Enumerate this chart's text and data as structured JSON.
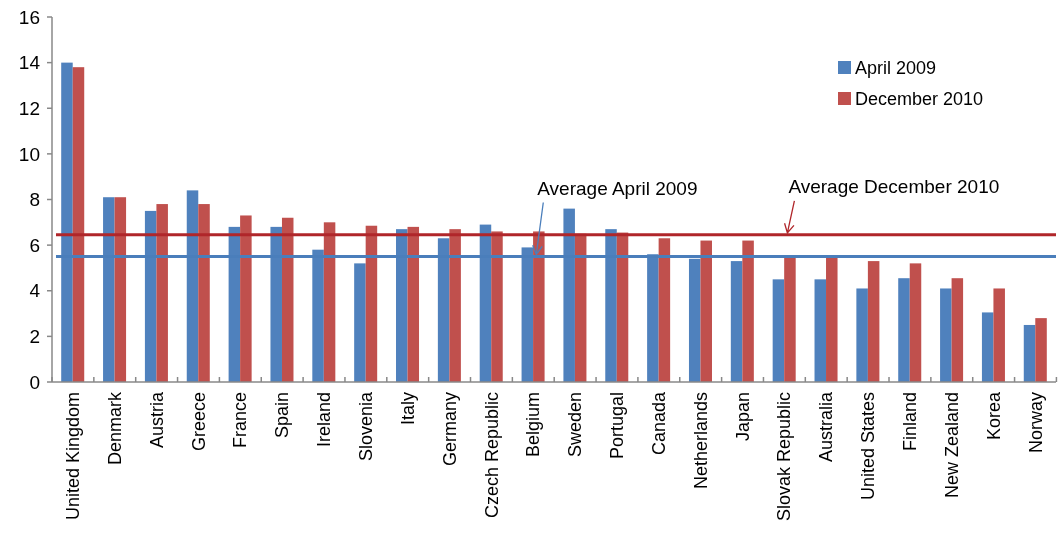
{
  "chart_data": {
    "type": "bar",
    "categories": [
      "United Kingdom",
      "Denmark",
      "Austria",
      "Greece",
      "France",
      "Spain",
      "Ireland",
      "Slovenia",
      "Italy",
      "Germany",
      "Czech Republic",
      "Belgium",
      "Sweden",
      "Portugal",
      "Canada",
      "Netherlands",
      "Japan",
      "Slovak Republic",
      "Australia",
      "United States",
      "Finland",
      "New Zealand",
      "Korea",
      "Norway"
    ],
    "series": [
      {
        "name": "April 2009",
        "color": "#4f81bd",
        "values": [
          14.0,
          8.1,
          7.5,
          8.4,
          6.8,
          6.8,
          5.8,
          5.2,
          6.7,
          6.3,
          6.9,
          5.9,
          7.6,
          6.7,
          5.6,
          5.4,
          5.3,
          4.5,
          4.5,
          4.1,
          4.55,
          4.1,
          3.05,
          2.5
        ]
      },
      {
        "name": "December 2010",
        "color": "#c0504d",
        "values": [
          13.8,
          8.1,
          7.8,
          7.8,
          7.3,
          7.2,
          7.0,
          6.85,
          6.8,
          6.7,
          6.6,
          6.6,
          6.5,
          6.55,
          6.3,
          6.2,
          6.2,
          5.5,
          5.5,
          5.3,
          5.2,
          4.55,
          4.1,
          2.8
        ]
      }
    ],
    "ylim": [
      0,
      16
    ],
    "yticks": [
      0,
      2,
      4,
      6,
      8,
      10,
      12,
      14,
      16
    ],
    "grid": false,
    "legend": "top right",
    "ref_lines": [
      {
        "axis": "y",
        "value": 5.5,
        "color": "#4a7ebb"
      },
      {
        "axis": "y",
        "value": 6.45,
        "color": "#b0262a"
      }
    ],
    "annotations": [
      {
        "text": "Average April 2009",
        "x": "Belgium",
        "y": 5.5
      },
      {
        "text": "Average December 2010",
        "x": "Slovak Republic",
        "y": 6.45
      }
    ]
  }
}
